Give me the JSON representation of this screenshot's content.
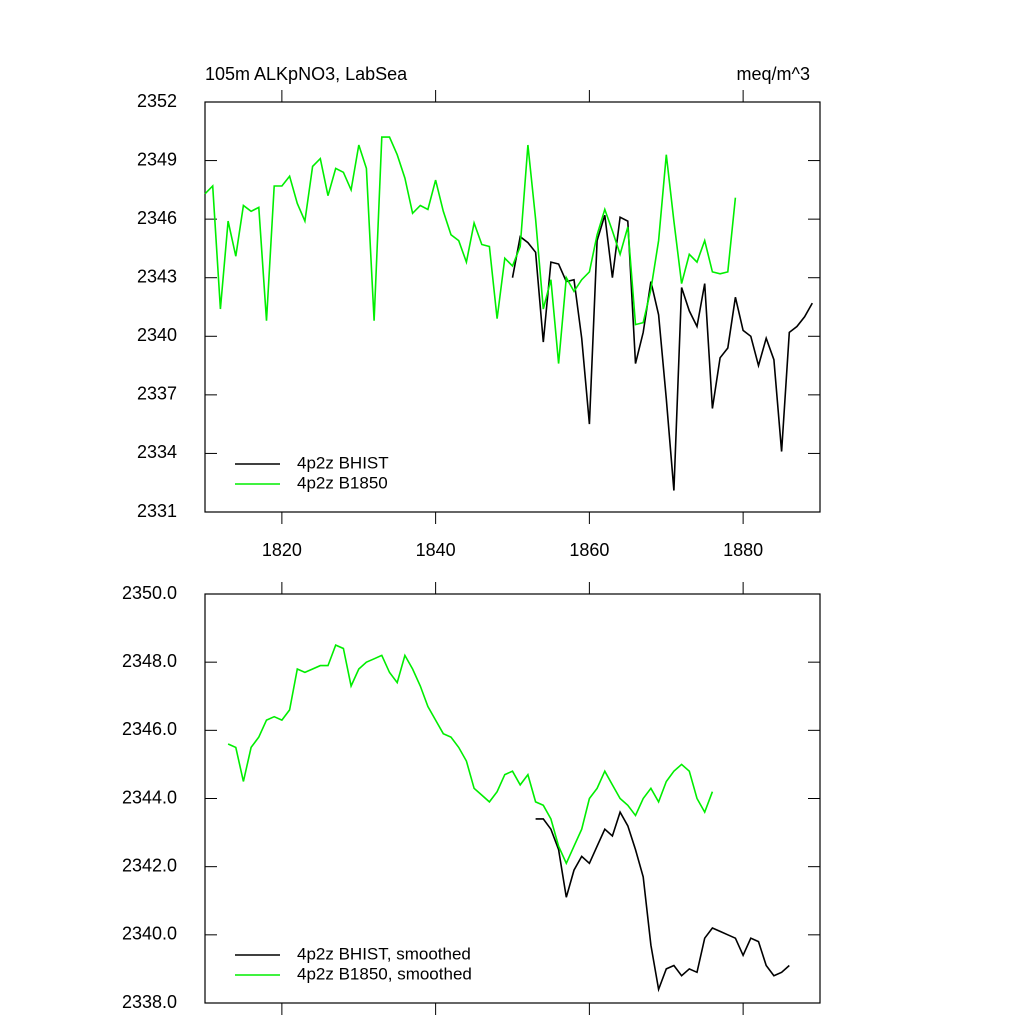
{
  "chart_data": [
    {
      "type": "line",
      "title": "105m ALKpNO3, LabSea",
      "units": "meq/m^3",
      "xlim": [
        1810,
        1890
      ],
      "xticks": [
        1820,
        1840,
        1860,
        1880
      ],
      "ylim": [
        2331,
        2352
      ],
      "yticks": [
        2331,
        2334,
        2337,
        2340,
        2343,
        2346,
        2349,
        2352
      ],
      "legend": "lower left",
      "series": [
        {
          "name": "4p2z BHIST",
          "color": "#000000",
          "x": [
            1850,
            1851,
            1852,
            1853,
            1854,
            1855,
            1856,
            1857,
            1858,
            1859,
            1860,
            1861,
            1862,
            1863,
            1864,
            1865,
            1866,
            1867,
            1868,
            1869,
            1870,
            1871,
            1872,
            1873,
            1874,
            1875,
            1876,
            1877,
            1878,
            1879,
            1880,
            1881,
            1882,
            1883,
            1884,
            1885,
            1886,
            1887,
            1888,
            1889
          ],
          "values": [
            2343.0,
            2345.1,
            2344.8,
            2344.3,
            2339.7,
            2343.8,
            2343.7,
            2342.8,
            2342.9,
            2339.9,
            2335.5,
            2344.9,
            2346.2,
            2343.0,
            2346.1,
            2345.9,
            2338.6,
            2340.2,
            2342.8,
            2341.1,
            2336.8,
            2332.1,
            2342.5,
            2341.3,
            2340.5,
            2342.7,
            2336.3,
            2338.9,
            2339.4,
            2342.0,
            2340.3,
            2340.0,
            2338.5,
            2339.9,
            2338.8,
            2334.1,
            2340.2,
            2340.5,
            2341.0,
            2341.7
          ]
        },
        {
          "name": "4p2z B1850",
          "color": "#00ee00",
          "x": [
            1810,
            1811,
            1812,
            1813,
            1814,
            1815,
            1816,
            1817,
            1818,
            1819,
            1820,
            1821,
            1822,
            1823,
            1824,
            1825,
            1826,
            1827,
            1828,
            1829,
            1830,
            1831,
            1832,
            1833,
            1834,
            1835,
            1836,
            1837,
            1838,
            1839,
            1840,
            1841,
            1842,
            1843,
            1844,
            1845,
            1846,
            1847,
            1848,
            1849,
            1850,
            1851,
            1852,
            1853,
            1854,
            1855,
            1856,
            1857,
            1858,
            1859,
            1860,
            1861,
            1862,
            1863,
            1864,
            1865,
            1866,
            1867,
            1868,
            1869,
            1870,
            1871,
            1872,
            1873,
            1874,
            1875,
            1876,
            1877,
            1878,
            1879
          ],
          "values": [
            2347.3,
            2347.7,
            2341.4,
            2345.9,
            2344.1,
            2346.7,
            2346.4,
            2346.6,
            2340.8,
            2347.7,
            2347.7,
            2348.2,
            2346.8,
            2345.9,
            2348.7,
            2349.1,
            2347.2,
            2348.6,
            2348.4,
            2347.5,
            2349.8,
            2348.6,
            2340.8,
            2350.2,
            2350.2,
            2349.3,
            2348.1,
            2346.3,
            2346.7,
            2346.5,
            2348.0,
            2346.4,
            2345.2,
            2344.9,
            2343.8,
            2345.8,
            2344.7,
            2344.6,
            2340.9,
            2344.0,
            2343.6,
            2344.6,
            2349.8,
            2346.0,
            2341.4,
            2342.9,
            2338.6,
            2343.0,
            2342.3,
            2342.9,
            2343.3,
            2345.2,
            2346.5,
            2345.4,
            2344.2,
            2345.6,
            2340.6,
            2340.7,
            2342.4,
            2344.9,
            2349.3,
            2345.9,
            2342.7,
            2344.2,
            2343.8,
            2344.9,
            2343.3,
            2343.2,
            2343.3,
            2347.1
          ]
        }
      ]
    },
    {
      "type": "line",
      "xlim": [
        1810,
        1890
      ],
      "ylim": [
        2338,
        2350
      ],
      "yticks": [
        {
          "value": 2338,
          "label": "2338.0"
        },
        {
          "value": 2340,
          "label": "2340.0"
        },
        {
          "value": 2342,
          "label": "2342.0"
        },
        {
          "value": 2344,
          "label": "2344.0"
        },
        {
          "value": 2346,
          "label": "2346.0"
        },
        {
          "value": 2348,
          "label": "2348.0"
        },
        {
          "value": 2350,
          "label": "2350.0"
        }
      ],
      "legend": "lower left",
      "series": [
        {
          "name": "4p2z BHIST, smoothed",
          "color": "#000000",
          "x": [
            1853,
            1854,
            1855,
            1856,
            1857,
            1858,
            1859,
            1860,
            1861,
            1862,
            1863,
            1864,
            1865,
            1866,
            1867,
            1868,
            1869,
            1870,
            1871,
            1872,
            1873,
            1874,
            1875,
            1876,
            1877,
            1878,
            1879,
            1880,
            1881,
            1882,
            1883,
            1884,
            1885,
            1886
          ],
          "values": [
            2343.4,
            2343.4,
            2343.1,
            2342.5,
            2341.1,
            2341.9,
            2342.3,
            2342.1,
            2342.6,
            2343.1,
            2342.9,
            2343.6,
            2343.2,
            2342.5,
            2341.7,
            2339.7,
            2338.4,
            2339.0,
            2339.1,
            2338.8,
            2339.0,
            2338.9,
            2339.9,
            2340.2,
            2340.1,
            2340.0,
            2339.9,
            2339.4,
            2339.9,
            2339.8,
            2339.1,
            2338.8,
            2338.9,
            2339.1
          ]
        },
        {
          "name": "4p2z B1850, smoothed",
          "color": "#00ee00",
          "x": [
            1813,
            1814,
            1815,
            1816,
            1817,
            1818,
            1819,
            1820,
            1821,
            1822,
            1823,
            1824,
            1825,
            1826,
            1827,
            1828,
            1829,
            1830,
            1831,
            1832,
            1833,
            1834,
            1835,
            1836,
            1837,
            1838,
            1839,
            1840,
            1841,
            1842,
            1843,
            1844,
            1845,
            1846,
            1847,
            1848,
            1849,
            1850,
            1851,
            1852,
            1853,
            1854,
            1855,
            1856,
            1857,
            1858,
            1859,
            1860,
            1861,
            1862,
            1863,
            1864,
            1865,
            1866,
            1867,
            1868,
            1869,
            1870,
            1871,
            1872,
            1873,
            1874,
            1875,
            1876
          ],
          "values": [
            2345.6,
            2345.5,
            2344.5,
            2345.5,
            2345.8,
            2346.3,
            2346.4,
            2346.3,
            2346.6,
            2347.8,
            2347.7,
            2347.8,
            2347.9,
            2347.9,
            2348.5,
            2348.4,
            2347.3,
            2347.8,
            2348.0,
            2348.1,
            2348.2,
            2347.7,
            2347.4,
            2348.2,
            2347.8,
            2347.3,
            2346.7,
            2346.3,
            2345.9,
            2345.8,
            2345.5,
            2345.1,
            2344.3,
            2344.1,
            2343.9,
            2344.2,
            2344.7,
            2344.8,
            2344.4,
            2344.7,
            2343.9,
            2343.8,
            2343.4,
            2342.6,
            2342.1,
            2342.6,
            2343.1,
            2344.0,
            2344.3,
            2344.8,
            2344.4,
            2344.0,
            2343.8,
            2343.5,
            2344.0,
            2344.3,
            2343.9,
            2344.5,
            2344.8,
            2345.0,
            2344.8,
            2344.0,
            2343.6,
            2344.2
          ]
        }
      ]
    }
  ]
}
